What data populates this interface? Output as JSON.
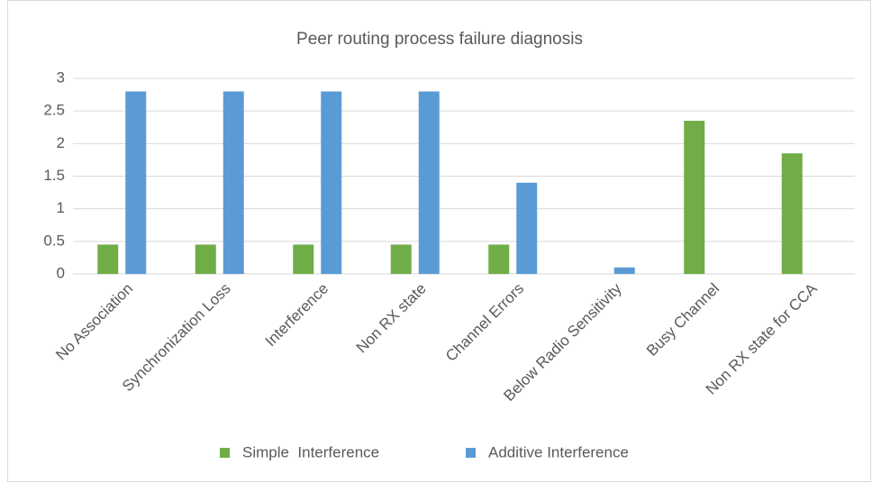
{
  "chart_data": {
    "type": "bar",
    "title": "Peer routing process failure diagnosis",
    "categories": [
      "No Association",
      "Synchronization Loss",
      "Interference",
      "Non RX state",
      "Channel Errors",
      "Below Radio Sensitivity",
      "Busy Channel",
      "Non RX state for CCA"
    ],
    "series": [
      {
        "name": "Simple  Interference",
        "color": "#70ad47",
        "values": [
          0.45,
          0.45,
          0.45,
          0.45,
          0.45,
          0,
          2.35,
          1.85
        ]
      },
      {
        "name": "Additive Interference",
        "color": "#5b9bd5",
        "values": [
          2.8,
          2.8,
          2.8,
          2.8,
          1.4,
          0.1,
          0,
          0
        ]
      }
    ],
    "ylim": [
      0,
      3
    ],
    "yticks": [
      0,
      0.5,
      1,
      1.5,
      2,
      2.5,
      3
    ],
    "grid": true,
    "legend": "bottom"
  }
}
